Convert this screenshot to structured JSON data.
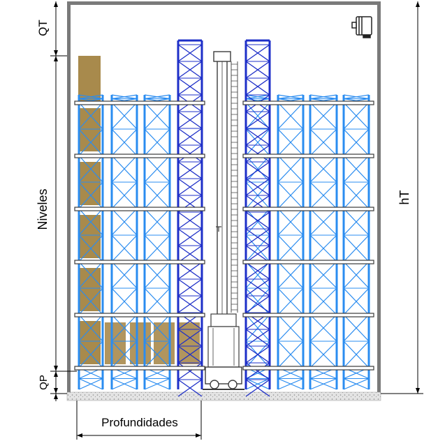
{
  "labels": {
    "qt": "QT",
    "qp": "QP",
    "niveles": "Niveles",
    "ht": "hT",
    "profundidades": "Profundidades"
  },
  "colors": {
    "rack_light": "#2a8cf0",
    "rack_dark": "#1e2fc8",
    "load": "#a88a4c",
    "beam": "#3a3a3a",
    "wall": "#7a7a7a",
    "floor": "#d9d9d9",
    "machine": "#3c3c3c"
  },
  "rack": {
    "levels": 6,
    "load_column_heights": 7
  }
}
